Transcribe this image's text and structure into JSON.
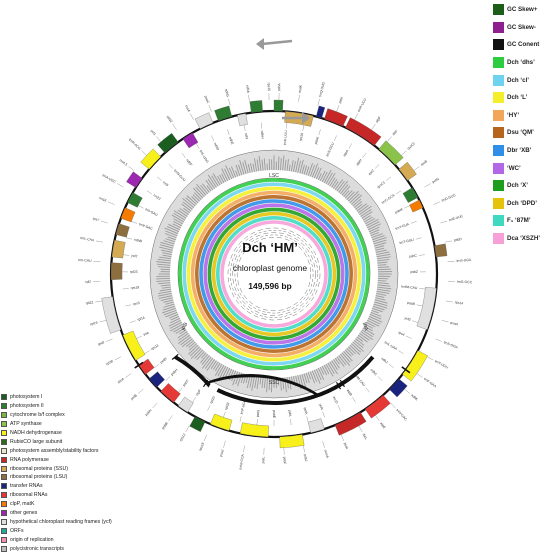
{
  "map": {
    "title": "Dch ‘HM’",
    "subtitle": "chloroplast genome",
    "length": "149,596 bp",
    "regions": {
      "lsc": "LSC",
      "ssc": "SSC",
      "ira": "IRA",
      "irb": "IRB"
    },
    "colors": {
      "photosystem_i": "#1b5e20",
      "photosystem_ii": "#2e7d32",
      "cytochrome": "#7cb342",
      "atp": "#8bc34a",
      "ndh": "#f7f01a",
      "rbcl": "#33691e",
      "photosystem_assembly": "#e8e8c8",
      "rna_pol": "#c62828",
      "ssu": "#d4aa52",
      "lsu": "#8d6e3e",
      "trna": "#1a237e",
      "rrna": "#e53935",
      "clpp": "#f57c00",
      "other": "#9c27b0",
      "ycf": "#e0e0e0",
      "orf": "#26a69a",
      "origin": "#f48fb1",
      "polycistronic": "#bdbdbd"
    },
    "labels": [
      "psbA",
      "trnK-UUU",
      "matK",
      "rps16",
      "trnQ-UUG",
      "psbK",
      "psbI",
      "trnS-GCU",
      "trnR-UCU",
      "atpA",
      "atpF",
      "atpH",
      "atpI",
      "rps2",
      "rpoC2",
      "rpoC1",
      "rpoB",
      "trnC-GCA",
      "petN",
      "psbM",
      "trnD-GUC",
      "trnY-GUA",
      "trnE-UUC",
      "trnT-GGU",
      "psbD",
      "psbC",
      "trnS-UGA",
      "psbZ",
      "trnG-GCC",
      "trnfM-CAU",
      "rps14",
      "psaB",
      "psaA",
      "ycf3",
      "trnS-GGA",
      "rps4",
      "trnT-UGU",
      "trnL-UAA",
      "trnF-GAA",
      "ndhJ",
      "ndhK",
      "ndhC",
      "trnV-UAC",
      "trnM-CAU",
      "atpE",
      "atpB",
      "rbcL",
      "accD",
      "psaI",
      "ycf4",
      "cemA",
      "petA",
      "psbJ",
      "psbL",
      "psbF",
      "psbE",
      "petL",
      "petG",
      "trnW-CCA",
      "trnP-UGG",
      "psaJ",
      "rpl33",
      "rps18",
      "rpl20",
      "rps12",
      "clpP",
      "psbB",
      "psbT",
      "psbN",
      "psbH",
      "petB",
      "petD",
      "rpoA",
      "rps11",
      "rpl36",
      "infA",
      "rps8",
      "rpl14",
      "rpl16",
      "rps3",
      "rpl22",
      "rps19",
      "rpl2",
      "rpl23",
      "trnI-CAU",
      "ycf2",
      "trnL-CAA",
      "ndhB",
      "rps7",
      "trnV-GAC",
      "rrn16",
      "trnI-GAU",
      "trnA-UGC",
      "rrn23",
      "rrn4.5",
      "rrn5",
      "trnR-ACG",
      "trnN-GUU",
      "ycf1",
      "ndhF",
      "rpl32",
      "trnL-UAG",
      "ccsA",
      "ndhD",
      "psaC",
      "ndhE",
      "ndhG",
      "ndhI",
      "ndhA",
      "ndhH",
      "rps15"
    ]
  },
  "legend": [
    {
      "label": "GC Skew+",
      "color": "#1a5e1a"
    },
    {
      "label": "GC Skew-",
      "color": "#8e1f8e"
    },
    {
      "label": "GC Conent",
      "color": "#111111"
    },
    {
      "label": "Dch ‘dhs’",
      "color": "#2ecc40"
    },
    {
      "label": "Dch ‘cl’",
      "color": "#6fd3f0"
    },
    {
      "label": "Dch ‘L’",
      "color": "#f5ee2a"
    },
    {
      "label": "‘HY’",
      "color": "#f2a65a"
    },
    {
      "label": "Dsu ‘QM’",
      "color": "#b5651d"
    },
    {
      "label": "Dbr ‘XB’",
      "color": "#2f8fe8"
    },
    {
      "label": "‘WC’",
      "color": "#b267e6"
    },
    {
      "label": "Dch ‘X’",
      "color": "#1e9e1e"
    },
    {
      "label": "Dch ‘DPD’",
      "color": "#e5c20c"
    },
    {
      "label": "F₁ ‘87M’",
      "color": "#3fd9c2"
    },
    {
      "label": "Dca ‘XSZH’",
      "color": "#f7a0d8"
    }
  ],
  "key": [
    {
      "label": "photosystem I",
      "color": "#1b5e20"
    },
    {
      "label": "photosystem II",
      "color": "#2e7d32"
    },
    {
      "label": "cytochrome b/f complex",
      "color": "#7cb342"
    },
    {
      "label": "ATP synthase",
      "color": "#8bc34a"
    },
    {
      "label": "NADH dehydrogenase",
      "color": "#f7f01a"
    },
    {
      "label": "RubisCO large subunit",
      "color": "#33691e"
    },
    {
      "label": "photosystem assembly/stability factors",
      "color": "#e8e8c8"
    },
    {
      "label": "RNA polymerase",
      "color": "#c62828"
    },
    {
      "label": "ribosomal proteins (SSU)",
      "color": "#d4aa52"
    },
    {
      "label": "ribosomal proteins (LSU)",
      "color": "#8d6e3e"
    },
    {
      "label": "transfer RNAs",
      "color": "#1a237e"
    },
    {
      "label": "ribosomal RNAs",
      "color": "#e53935"
    },
    {
      "label": "clpP, matK",
      "color": "#f57c00"
    },
    {
      "label": "other genes",
      "color": "#9c27b0"
    },
    {
      "label": "hypothetical chloroplast reading frames (ycf)",
      "color": "#e0e0e0"
    },
    {
      "label": "ORFs",
      "color": "#26a69a"
    },
    {
      "label": "origin of replication",
      "color": "#f48fb1"
    },
    {
      "label": "polycistronic transcripts",
      "color": "#bdbdbd"
    }
  ]
}
